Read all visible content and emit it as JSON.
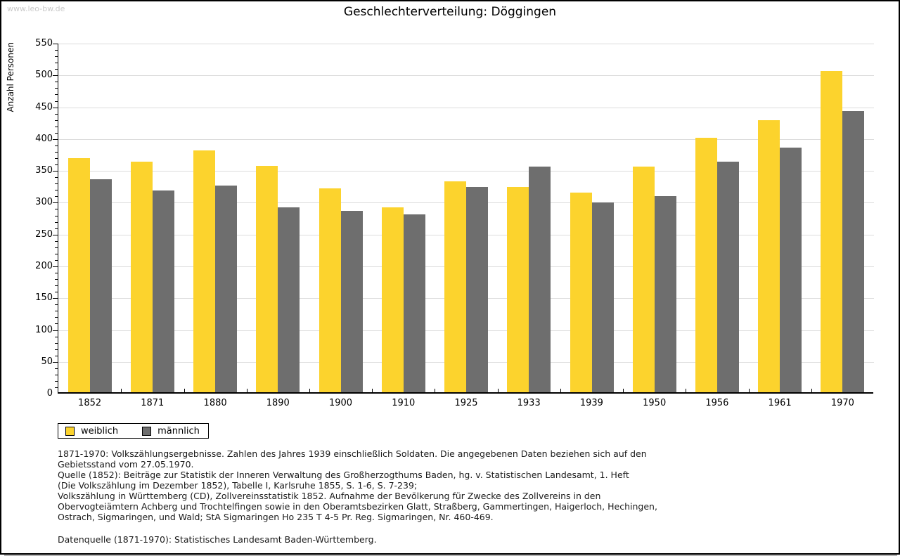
{
  "page": {
    "watermark": "www.leo-bw.de"
  },
  "chart_data": {
    "type": "bar",
    "title": "Geschlechterverteilung: Döggingen",
    "ylabel": "Anzahl Personen",
    "xlabel": "",
    "ylim": [
      0,
      550
    ],
    "ytick_step": 50,
    "ytick_minor_step": 10,
    "grid": true,
    "legend_position": "below-plot-left",
    "categories": [
      "1852",
      "1871",
      "1880",
      "1890",
      "1900",
      "1910",
      "1925",
      "1933",
      "1939",
      "1950",
      "1956",
      "1961",
      "1970"
    ],
    "series": [
      {
        "name": "weiblich",
        "color": "#fcd32d",
        "values": [
          368,
          362,
          380,
          356,
          320,
          290,
          331,
          323,
          314,
          355,
          400,
          428,
          505
        ]
      },
      {
        "name": "männlich",
        "color": "#6e6e6e",
        "values": [
          335,
          317,
          325,
          291,
          285,
          280,
          322,
          355,
          298,
          308,
          362,
          384,
          442
        ]
      }
    ]
  },
  "footer": {
    "lines": [
      "1871-1970: Volkszählungsergebnisse. Zahlen des Jahres 1939 einschließlich Soldaten. Die angegebenen Daten beziehen sich auf den",
      "Gebietsstand vom 27.05.1970.",
      "Quelle (1852): Beiträge zur Statistik der Inneren Verwaltung des Großherzogthums Baden, hg. v. Statistischen Landesamt, 1. Heft",
      "(Die Volkszählung im Dezember 1852), Tabelle I, Karlsruhe 1855, S. 1-6, S. 7-239;",
      "Volkszählung in Württemberg (CD), Zollvereinsstatistik 1852. Aufnahme der Bevölkerung für Zwecke des Zollvereins in den",
      "Obervogteiämtern Achberg und Trochtelfingen sowie in den Oberamtsbezirken Glatt, Straßberg, Gammertingen, Haigerloch, Hechingen,",
      "Ostrach, Sigmaringen, und Wald; StA Sigmaringen Ho 235 T 4-5 Pr. Reg. Sigmaringen, Nr. 460-469."
    ],
    "datasource": "Datenquelle (1871-1970): Statistisches Landesamt Baden-Württemberg."
  },
  "colors": {
    "weiblich": "#fcd32d",
    "maennlich": "#6e6e6e",
    "gridline": "#dcdcdc",
    "watermark": "#c9c9c9"
  }
}
